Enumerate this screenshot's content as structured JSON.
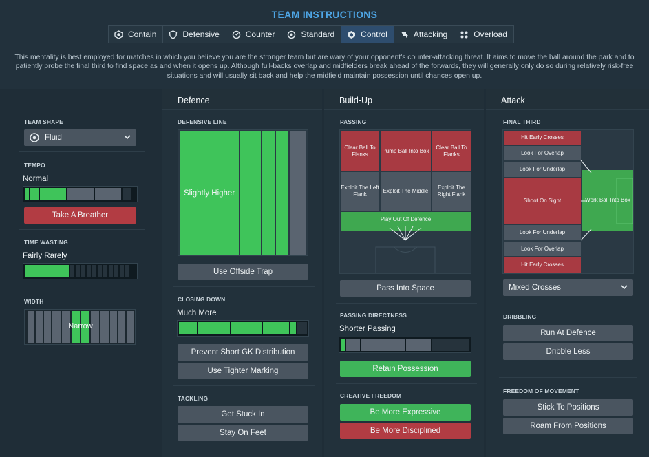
{
  "header": {
    "title": "TEAM INSTRUCTIONS",
    "tabs": [
      {
        "label": "Contain",
        "icon": "contain-icon",
        "active": false
      },
      {
        "label": "Defensive",
        "icon": "shield-icon",
        "active": false
      },
      {
        "label": "Counter",
        "icon": "counter-icon",
        "active": false
      },
      {
        "label": "Standard",
        "icon": "standard-icon",
        "active": false
      },
      {
        "label": "Control",
        "icon": "control-icon",
        "active": true
      },
      {
        "label": "Attacking",
        "icon": "attacking-icon",
        "active": false
      },
      {
        "label": "Overload",
        "icon": "overload-icon",
        "active": false
      }
    ],
    "description": "This mentality is best employed for matches in which you believe you are the stronger team but are wary of your opponent's counter-attacking threat. It aims to move the ball around the park and to patiently probe the final third to find space as and when it opens up. Although full-backs overlap and midfielders break ahead of the forwards, they will generally only do so during relatively risk-free situations and will usually sit back and help the midfield maintain possession until chances open up."
  },
  "left": {
    "team_shape": {
      "title": "TEAM SHAPE",
      "value": "Fluid"
    },
    "tempo": {
      "title": "TEMPO",
      "value": "Normal",
      "level": 0.55,
      "button": "Take A Breather"
    },
    "time_wasting": {
      "title": "TIME WASTING",
      "value": "Fairly Rarely",
      "level": 0.4
    },
    "width": {
      "title": "WIDTH",
      "value": "Narrow"
    }
  },
  "defence": {
    "heading": "Defence",
    "defensive_line": {
      "title": "DEFENSIVE LINE",
      "value": "Slightly Higher",
      "button": "Use Offside Trap"
    },
    "closing_down": {
      "title": "CLOSING DOWN",
      "value": "Much More",
      "level": 0.9,
      "buttons": [
        "Prevent Short GK Distribution",
        "Use Tighter Marking"
      ]
    },
    "tackling": {
      "title": "TACKLING",
      "buttons": [
        "Get Stuck In",
        "Stay On Feet"
      ]
    }
  },
  "buildup": {
    "heading": "Build-Up",
    "passing": {
      "title": "PASSING",
      "cells": [
        "Clear Ball To Flanks",
        "Pump Ball Into Box",
        "Clear Ball To Flanks",
        "Exploit The Left Flank",
        "Exploit The Middle",
        "Exploit The Right Flank"
      ],
      "play_out": "Play Out Of Defence",
      "button": "Pass Into Space"
    },
    "directness": {
      "title": "PASSING DIRECTNESS",
      "value": "Shorter Passing",
      "level": 0.15,
      "button": "Retain Possession"
    },
    "creative": {
      "title": "CREATIVE FREEDOM",
      "buttons": [
        "Be More Expressive",
        "Be More Disciplined"
      ]
    }
  },
  "attack": {
    "heading": "Attack",
    "final_third": {
      "title": "FINAL THIRD",
      "cells": [
        "Hit Early Crosses",
        "Look For Overlap",
        "Look For Underlap",
        "Shoot On Sight",
        "Look For Underlap",
        "Look For Overlap",
        "Hit Early Crosses"
      ],
      "box": "Work Ball Into Box",
      "crossing": "Mixed Crosses"
    },
    "dribbling": {
      "title": "DRIBBLING",
      "buttons": [
        "Run At Defence",
        "Dribble Less"
      ]
    },
    "freedom": {
      "title": "FREEDOM OF MOVEMENT",
      "buttons": [
        "Stick To Positions",
        "Roam From Positions"
      ]
    }
  },
  "colors": {
    "accent": "#4ea6e6",
    "green": "#3fc45a",
    "red": "#b23c43",
    "button": "#4a5560"
  }
}
